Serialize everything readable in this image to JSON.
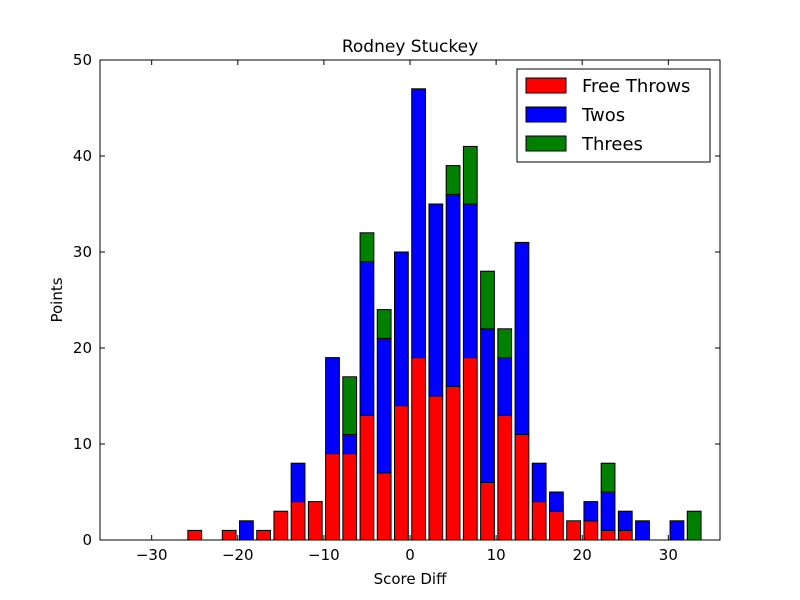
{
  "chart_data": {
    "type": "bar",
    "stacked": true,
    "title": "Rodney Stuckey",
    "xlabel": "Score Diff",
    "ylabel": "Points",
    "xlim": [
      -36,
      36
    ],
    "ylim": [
      0,
      50
    ],
    "xticks": [
      -30,
      -20,
      -10,
      0,
      10,
      20,
      30
    ],
    "xtick_labels": [
      "−30",
      "−20",
      "−10",
      "0",
      "10",
      "20",
      "30"
    ],
    "yticks": [
      0,
      10,
      20,
      30,
      40,
      50
    ],
    "ytick_labels": [
      "0",
      "10",
      "20",
      "30",
      "40",
      "50"
    ],
    "bar_width": 1.6,
    "legend_position": "top-right",
    "x": [
      -35,
      -33,
      -31,
      -29,
      -27,
      -25,
      -23,
      -21,
      -19,
      -17,
      -15,
      -13,
      -11,
      -9,
      -7,
      -5,
      -3,
      -1,
      1,
      3,
      5,
      7,
      9,
      11,
      13,
      15,
      17,
      19,
      21,
      23,
      25,
      27,
      29,
      31,
      33,
      35
    ],
    "series": [
      {
        "name": "Free Throws",
        "color": "#ff0000",
        "values": [
          0,
          0,
          0,
          0,
          0,
          1,
          0,
          1,
          0,
          1,
          3,
          4,
          4,
          9,
          9,
          13,
          7,
          14,
          19,
          15,
          16,
          19,
          6,
          13,
          11,
          4,
          3,
          2,
          2,
          1,
          1,
          0,
          0,
          0,
          0,
          0
        ]
      },
      {
        "name": "Twos",
        "color": "#0000ff",
        "values": [
          0,
          0,
          0,
          0,
          0,
          0,
          0,
          0,
          2,
          0,
          0,
          4,
          0,
          10,
          2,
          16,
          14,
          16,
          28,
          20,
          20,
          16,
          16,
          6,
          20,
          4,
          2,
          0,
          2,
          4,
          2,
          2,
          0,
          2,
          0,
          0
        ]
      },
      {
        "name": "Threes",
        "color": "#008000",
        "values": [
          0,
          0,
          0,
          0,
          0,
          0,
          0,
          0,
          0,
          0,
          0,
          0,
          0,
          0,
          6,
          3,
          3,
          0,
          0,
          0,
          3,
          6,
          6,
          3,
          0,
          0,
          0,
          0,
          0,
          3,
          0,
          0,
          0,
          0,
          3,
          0
        ]
      }
    ]
  }
}
